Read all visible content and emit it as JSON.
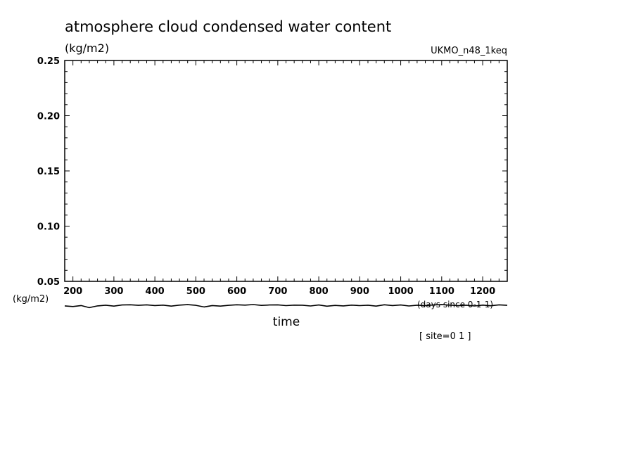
{
  "chart_data": {
    "type": "line",
    "title": "atmosphere cloud condensed water content",
    "units_label": "(kg/m2)",
    "source_label": "UKMO_n48_1keq",
    "xlabel": "time",
    "x_units_label": "(days since 0-1-1)",
    "left_units_label": "(kg/m2)",
    "site_label": "[ site=0 1 ]",
    "xlim": [
      180,
      1260
    ],
    "ylim": [
      0.05,
      0.25
    ],
    "x_ticks": [
      "200",
      "300",
      "400",
      "500",
      "600",
      "700",
      "800",
      "900",
      "1000",
      "1100",
      "1200"
    ],
    "y_ticks": [
      "0.25",
      "0.20",
      "0.15",
      "0.10",
      "0.05"
    ],
    "series_color": "#000000",
    "series": [
      {
        "x": [
          180,
          200,
          220,
          240,
          260,
          280,
          300,
          320,
          340,
          360,
          380,
          400,
          420,
          440,
          460,
          480,
          500,
          520,
          540,
          560,
          580,
          600,
          620,
          640,
          660,
          680,
          700,
          720,
          740,
          760,
          780,
          800,
          820,
          840,
          860,
          880,
          900,
          920,
          940,
          960,
          980,
          1000,
          1020,
          1040,
          1060,
          1080,
          1100,
          1120,
          1140,
          1160,
          1180,
          1200,
          1220,
          1240,
          1260
        ],
        "y": [
          0.0278,
          0.0272,
          0.0281,
          0.0262,
          0.0278,
          0.0284,
          0.0276,
          0.0286,
          0.0288,
          0.0283,
          0.0287,
          0.0281,
          0.0285,
          0.0276,
          0.0285,
          0.0289,
          0.0283,
          0.0268,
          0.0281,
          0.0276,
          0.0283,
          0.0288,
          0.0285,
          0.029,
          0.0282,
          0.0286,
          0.0287,
          0.028,
          0.0285,
          0.0284,
          0.0277,
          0.0286,
          0.0275,
          0.0282,
          0.0278,
          0.0285,
          0.028,
          0.0284,
          0.0276,
          0.0288,
          0.0281,
          0.0286,
          0.0277,
          0.0284,
          0.0281,
          0.0286,
          0.0289,
          0.0285,
          0.028,
          0.0284,
          0.0277,
          0.0285,
          0.0279,
          0.0287,
          0.0283
        ]
      }
    ]
  }
}
